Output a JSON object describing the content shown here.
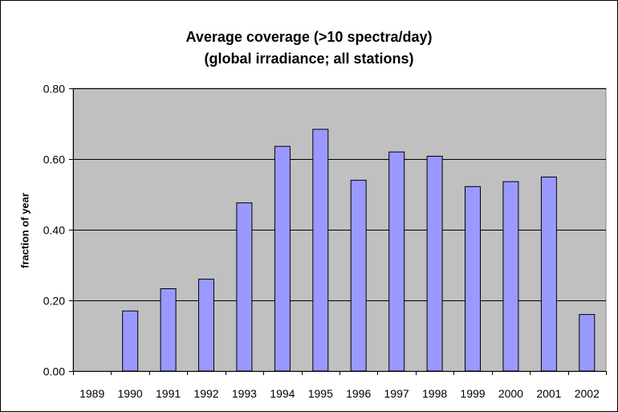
{
  "chart_data": {
    "type": "bar",
    "title": "Average coverage (>10 spectra/day)",
    "subtitle": "(global irradiance; all stations)",
    "xlabel": "",
    "ylabel": "fraction of year",
    "categories": [
      "1989",
      "1990",
      "1991",
      "1992",
      "1993",
      "1994",
      "1995",
      "1996",
      "1997",
      "1998",
      "1999",
      "2000",
      "2001",
      "2002"
    ],
    "series": [
      {
        "name": "fraction of year",
        "values": [
          0.0,
          0.17,
          0.233,
          0.26,
          0.476,
          0.636,
          0.684,
          0.54,
          0.62,
          0.608,
          0.522,
          0.536,
          0.549,
          0.16
        ]
      }
    ],
    "ylim": [
      0,
      0.8
    ],
    "yticks": [
      "0.00",
      "0.20",
      "0.40",
      "0.60",
      "0.80"
    ],
    "grid": true,
    "legend": "none",
    "colors": {
      "plot_background": "#c0c0c0",
      "bar_fill": "#9999ff",
      "bar_stroke": "#000000",
      "gridline": "#000000"
    }
  }
}
